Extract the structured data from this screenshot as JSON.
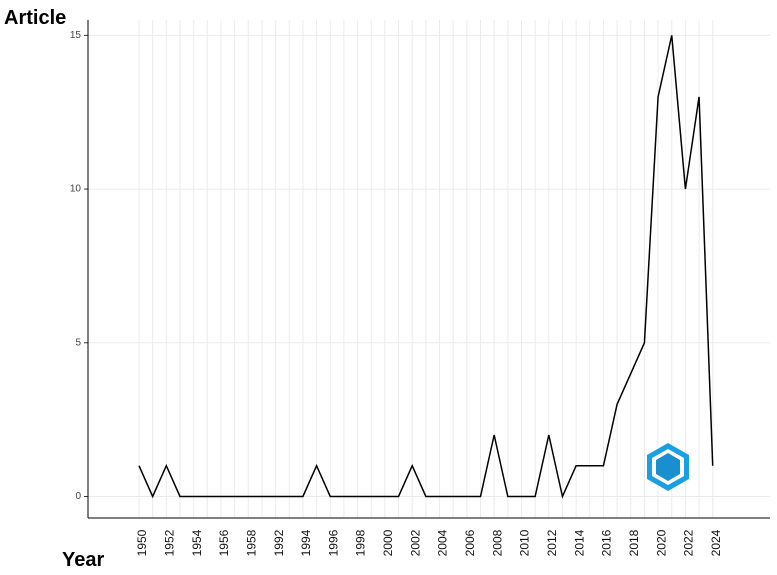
{
  "chart_data": {
    "type": "line",
    "y_label": "Article",
    "x_label": "Year",
    "categories": [
      "1950",
      null,
      "1952",
      null,
      "1954",
      null,
      "1956",
      null,
      "1958",
      null,
      "1992",
      null,
      "1994",
      null,
      "1996",
      null,
      "1998",
      null,
      "2000",
      null,
      "2002",
      null,
      "2004",
      null,
      "2006",
      null,
      "2008",
      null,
      "2010",
      null,
      "2012",
      null,
      "2014",
      null,
      "2016",
      null,
      "2018",
      null,
      "2020",
      null,
      "2022",
      null,
      "2024"
    ],
    "values": [
      1,
      0,
      1,
      0,
      0,
      0,
      0,
      0,
      0,
      0,
      0,
      0,
      0,
      1,
      0,
      0,
      0,
      0,
      0,
      0,
      1,
      0,
      0,
      0,
      0,
      0,
      2,
      0,
      0,
      0,
      2,
      0,
      1,
      1,
      1,
      3,
      4,
      5,
      13,
      15,
      10,
      13,
      1
    ],
    "color": "#000000",
    "ylim": [
      -0.7,
      15.5
    ],
    "yticks": [
      0,
      5,
      10,
      15
    ],
    "grid": true
  }
}
